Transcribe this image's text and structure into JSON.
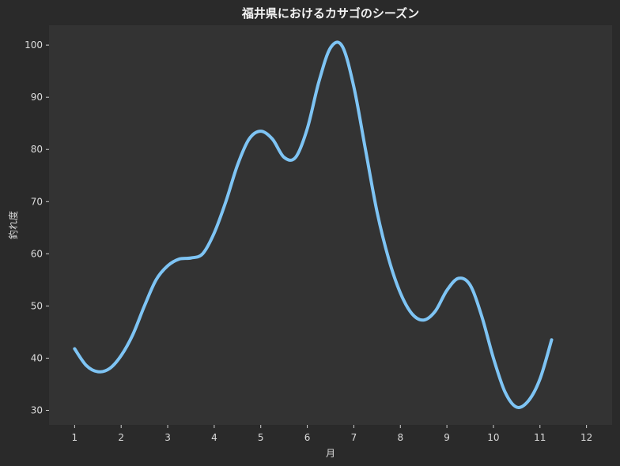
{
  "chart_data": {
    "type": "line",
    "title": "福井県におけるカサゴのシーズン",
    "xlabel": "月",
    "ylabel": "釣れ度",
    "x": [
      1,
      1.25,
      1.5,
      1.75,
      2,
      2.25,
      2.5,
      2.75,
      3,
      3.25,
      3.5,
      3.75,
      4,
      4.25,
      4.5,
      4.75,
      5,
      5.25,
      5.5,
      5.75,
      6,
      6.25,
      6.5,
      6.75,
      7,
      7.25,
      7.5,
      7.75,
      8,
      8.25,
      8.5,
      8.75,
      9,
      9.25,
      9.5,
      9.75,
      10,
      10.25,
      10.5,
      10.75,
      11,
      11.25,
      11.5,
      11.75,
      12
    ],
    "series": [
      {
        "values": [
          41.8,
          38.6,
          37.4,
          38.0,
          40.5,
          44.5,
          50.0,
          55.0,
          57.7,
          59.0,
          59.2,
          60.0,
          64.0,
          70.0,
          77.0,
          82.0,
          83.5,
          82.0,
          78.5,
          78.5,
          84.0,
          93.0,
          99.5,
          99.8,
          92.0,
          80.0,
          68.0,
          59.0,
          52.5,
          48.5,
          47.3,
          49.0,
          53.0,
          55.3,
          54.0,
          48.0,
          40.0,
          33.5,
          30.6,
          31.8,
          36.0,
          43.5
        ],
        "x": [
          1,
          1.25,
          1.5,
          1.75,
          2,
          2.25,
          2.5,
          2.75,
          3,
          3.25,
          3.5,
          3.75,
          4,
          4.25,
          4.5,
          4.75,
          5,
          5.25,
          5.5,
          5.75,
          6,
          6.25,
          6.5,
          6.75,
          7,
          7.25,
          7.5,
          7.75,
          8,
          8.25,
          8.5,
          8.75,
          9,
          9.25,
          9.5,
          9.75,
          10,
          10.25,
          10.5,
          10.75,
          11,
          11.25
        ]
      }
    ],
    "x_ticks": [
      "1",
      "2",
      "3",
      "4",
      "5",
      "6",
      "7",
      "8",
      "9",
      "10",
      "11",
      "12"
    ],
    "y_ticks": [
      "30",
      "40",
      "50",
      "60",
      "70",
      "80",
      "90",
      "100"
    ],
    "xlim": [
      0.45,
      12.55
    ],
    "ylim": [
      27.2,
      103.8
    ],
    "grid": false,
    "colors": {
      "background": "#2a2a2a",
      "plot_area": "#333333",
      "line": "#7ec4f4",
      "text": "#dcdcdc"
    }
  }
}
